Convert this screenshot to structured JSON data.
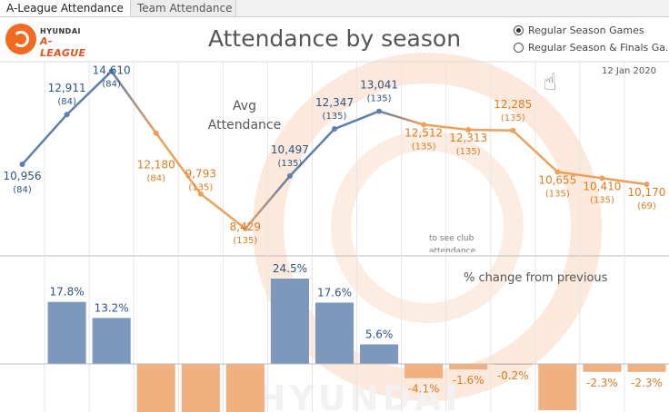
{
  "tabs": [
    {
      "label": "A-League Attendance",
      "active": true
    },
    {
      "label": "Team Attendance",
      "active": false
    }
  ],
  "logo": {
    "brand": "HYUNDAI",
    "league": "A-LEAGUE"
  },
  "title": "Attendance by season",
  "radio_options": [
    {
      "label": "Regular Season Games",
      "selected": true
    },
    {
      "label": "Regular Season & Finals Ga...",
      "selected": false
    }
  ],
  "date": "12 Jan 2020",
  "avg_label_line1": "Avg",
  "avg_label_line2": "Attendance",
  "pct_label": "% change from previous",
  "hint_text": "to see club attendance",
  "watermark_text": "HYUNDAI",
  "colors": {
    "blue": "#5b7fae",
    "orange": "#eea05a",
    "bar_blue": "#7d98bd",
    "bar_orange": "#f0b07f",
    "label_blue": "#2e5485",
    "label_orange": "#e07b1f"
  },
  "chart_data": [
    {
      "type": "line",
      "title": "Attendance by season",
      "series_label": "Avg Attendance",
      "x_count": 15,
      "values": [
        10956,
        12911,
        14610,
        12180,
        9793,
        8429,
        10497,
        12347,
        13041,
        12512,
        12313,
        12285,
        10655,
        10410,
        10170
      ],
      "value_labels": [
        "10,956",
        "12,911",
        "14,610",
        "12,180",
        "9,793",
        "8,429",
        "10,497",
        "12,347",
        "13,041",
        "12,512",
        "12,313",
        "12,285",
        "10,655",
        "10,410",
        "10,170"
      ],
      "games": [
        "(84)",
        "(84)",
        "(84)",
        "(84)",
        "(135)",
        "(135)",
        "(135)",
        "(135)",
        "(135)",
        "(135)",
        "(135)",
        "(135)",
        "(135)",
        "(135)",
        "(69)"
      ],
      "ylim": [
        7500,
        15200
      ],
      "grid": "vertical"
    },
    {
      "type": "bar",
      "title": "% change from previous",
      "values": [
        null,
        17.8,
        13.2,
        -16.6,
        -19.6,
        -13.9,
        24.5,
        17.6,
        5.6,
        -4.1,
        -1.6,
        -0.2,
        -13.3,
        -2.3,
        -2.3
      ],
      "labels": [
        "",
        "17.8%",
        "13.2%",
        "",
        "",
        "",
        "24.5%",
        "17.6%",
        "5.6%",
        "-4.1%",
        "-1.6%",
        "-0.2%",
        "",
        "-2.3%",
        "-2.3%"
      ],
      "ylim": [
        -20,
        25
      ]
    }
  ]
}
